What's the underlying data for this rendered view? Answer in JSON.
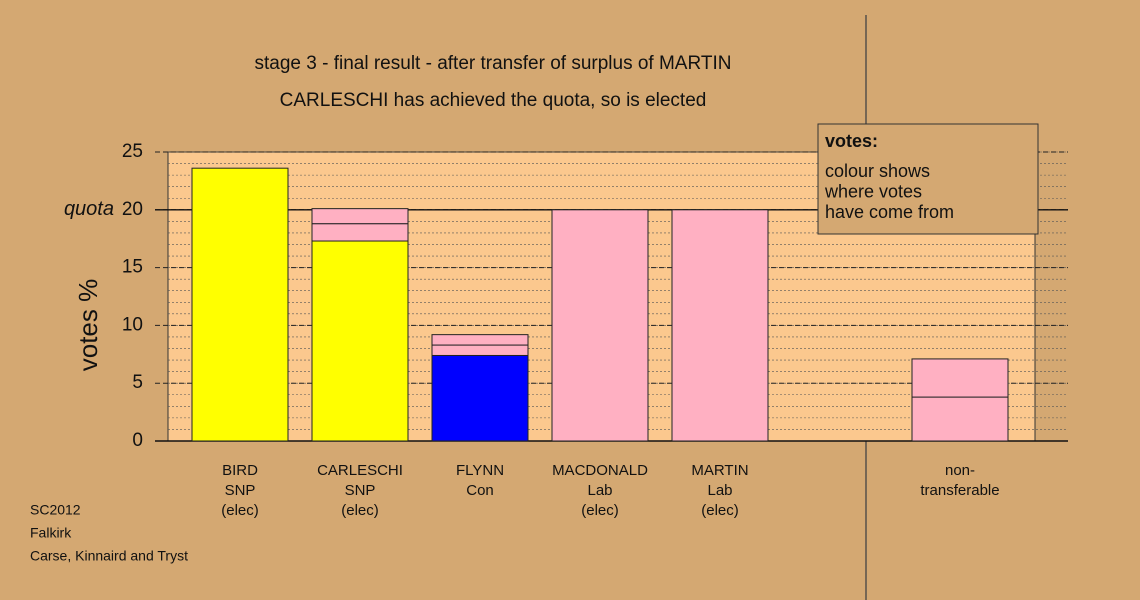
{
  "chart_data": {
    "type": "stacked-bar",
    "title": "stage 3 - final result - after transfer of surplus of MARTIN",
    "subtitle": "CARLESCHI has achieved the quota, so is elected",
    "y_label": "votes %",
    "categories": [
      [
        "BIRD",
        "SNP",
        "(elec)"
      ],
      [
        "CARLESCHI",
        "SNP",
        "(elec)"
      ],
      [
        "FLYNN",
        "Con"
      ],
      [
        "MACDONALD",
        "Lab",
        "(elec)"
      ],
      [
        "MARTIN",
        "Lab",
        "(elec)"
      ],
      null,
      [
        "non-",
        "transferable"
      ]
    ],
    "stacks": [
      [
        {
          "value": 23.6,
          "color": "#ffff00"
        }
      ],
      [
        {
          "value": 17.3,
          "color": "#ffff00"
        },
        {
          "value": 1.5,
          "color": "#ffb0c2"
        },
        {
          "value": 1.3,
          "color": "#ffb0c2"
        }
      ],
      [
        {
          "value": 7.4,
          "color": "#0000ff"
        },
        {
          "value": 0.9,
          "color": "#ffb0c2"
        },
        {
          "value": 0.9,
          "color": "#ffb0c2"
        }
      ],
      [
        {
          "value": 20.0,
          "color": "#ffb0c2"
        }
      ],
      [
        {
          "value": 20.0,
          "color": "#ffb0c2"
        }
      ],
      [],
      [
        {
          "value": 3.8,
          "color": "#ffb0c2"
        },
        {
          "value": 3.3,
          "color": "#ffb0c2"
        }
      ]
    ],
    "ylim": [
      0,
      25
    ],
    "yticks": [
      0,
      5,
      10,
      15,
      20,
      25
    ],
    "minor_step": 1,
    "quota": {
      "value": 20,
      "label": "quota"
    },
    "grid": true,
    "panel_color": "#fbc88e",
    "legend_title": "votes:",
    "legend_text": [
      "colour shows",
      "where votes",
      "have come from"
    ],
    "notes": [
      "SC2012",
      "Falkirk",
      "Carse, Kinnaird and Tryst"
    ]
  }
}
